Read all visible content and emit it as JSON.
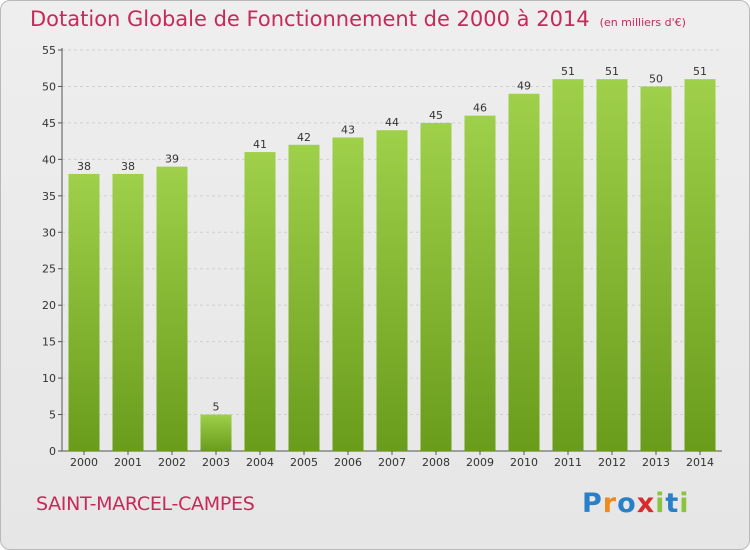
{
  "title": "Dotation Globale de Fonctionnement de 2000 à 2014",
  "unit_note": "(en milliers d'€)",
  "commune": "SAINT-MARCEL-CAMPES",
  "logo": {
    "text": "Proxiti",
    "letters": [
      {
        "char": "P",
        "color": "#2a7fc9"
      },
      {
        "char": "r",
        "color": "#f08a1c"
      },
      {
        "char": "o",
        "color": "#2a7fc9"
      },
      {
        "char": "x",
        "color": "#d92b2b"
      },
      {
        "char": "i",
        "color": "#8bc53f"
      },
      {
        "char": "t",
        "color": "#2a7fc9"
      },
      {
        "char": "i",
        "color": "#8bc53f"
      }
    ]
  },
  "colors": {
    "title": "#c8285a",
    "bar_top": "#9fd04a",
    "bar_bottom": "#6a9c1c",
    "grid": "#d0d0d0",
    "axis": "#555555"
  },
  "chart_data": {
    "type": "bar",
    "title": "Dotation Globale de Fonctionnement de 2000 à 2014",
    "subtitle": "(en milliers d'€)",
    "xlabel": "",
    "ylabel": "",
    "categories": [
      "2000",
      "2001",
      "2002",
      "2003",
      "2004",
      "2005",
      "2006",
      "2007",
      "2008",
      "2009",
      "2010",
      "2011",
      "2012",
      "2013",
      "2014"
    ],
    "values": [
      38,
      38,
      39,
      5,
      41,
      42,
      43,
      44,
      45,
      46,
      49,
      51,
      51,
      50,
      51
    ],
    "ylim": [
      0,
      55
    ],
    "yticks": [
      0,
      5,
      10,
      15,
      20,
      25,
      30,
      35,
      40,
      45,
      50,
      55
    ],
    "grid": true,
    "legend": "none"
  }
}
